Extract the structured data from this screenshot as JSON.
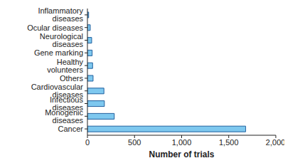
{
  "chart_data": {
    "type": "bar",
    "orientation": "horizontal",
    "x_label": "Number of trials",
    "categories": [
      "Inflammatory diseases",
      "Ocular diseases",
      "Neurological diseases",
      "Gene marking",
      "Healthy volunteers",
      "Others",
      "Cardiovascular diseases",
      "Infectious diseases",
      "Monogenic diseases",
      "Cancer"
    ],
    "values": [
      13,
      30,
      45,
      50,
      55,
      60,
      175,
      180,
      285,
      1680
    ],
    "color": "#7ec8ef",
    "xlim": [
      0,
      2000
    ],
    "xticks": [
      0,
      500,
      {
        "value": 1000,
        "label": "1,000"
      },
      {
        "value": 1500,
        "label": "1,500"
      },
      {
        "value": 2000,
        "label": "2,000"
      }
    ],
    "grid": false
  }
}
